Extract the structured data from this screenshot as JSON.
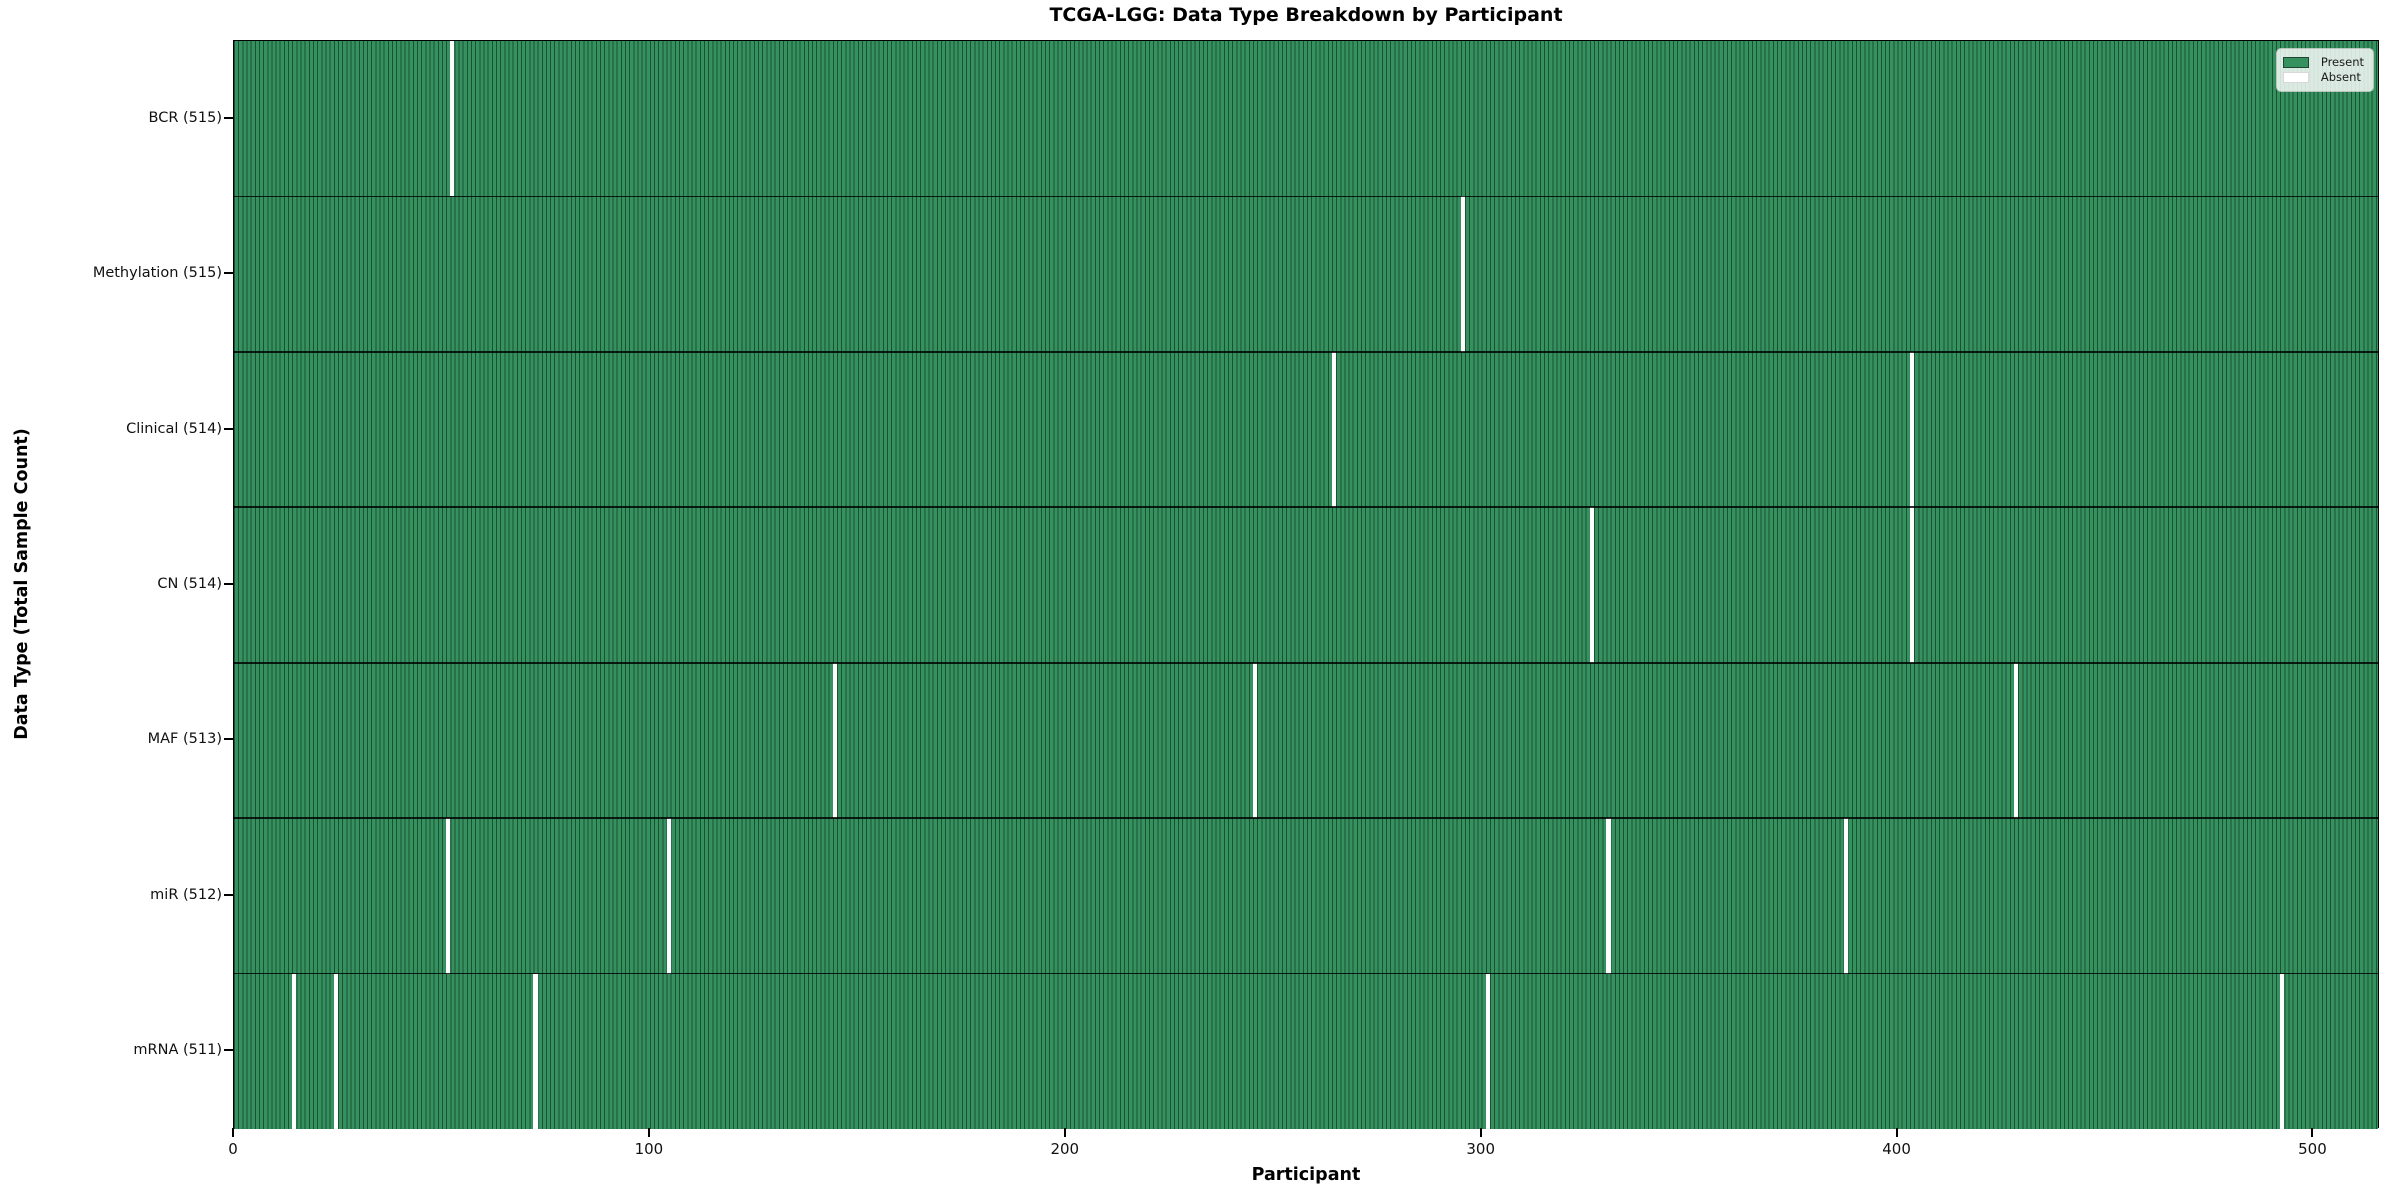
{
  "title": "TCGA-LGG: Data Type Breakdown by Participant",
  "axes": {
    "x_label": "Participant",
    "y_label": "Data Type (Total Sample Count)"
  },
  "legend": {
    "present_label": "Present",
    "absent_label": "Absent",
    "position": "upper right"
  },
  "colors": {
    "present": "#35925F",
    "cell_edge": "#1E4631",
    "absent": "#FFFFFF",
    "axis": "#000000"
  },
  "chart_data": {
    "type": "heatmap",
    "title": "TCGA-LGG: Data Type Breakdown by Participant",
    "xlabel": "Participant",
    "ylabel": "Data Type (Total Sample Count)",
    "xlim": [
      0,
      516
    ],
    "x_ticks": [
      0,
      100,
      200,
      300,
      400,
      500
    ],
    "total_participants": 516,
    "grid": false,
    "legend_entries": [
      "Present",
      "Absent"
    ],
    "legend_position": "upper right",
    "rows": [
      {
        "name": "BCR",
        "label": "BCR (515)",
        "present_count": 515,
        "absent_participants": [
          52
        ]
      },
      {
        "name": "Methylation",
        "label": "Methylation (515)",
        "present_count": 515,
        "absent_participants": [
          295
        ]
      },
      {
        "name": "Clinical",
        "label": "Clinical (514)",
        "present_count": 514,
        "absent_participants": [
          264,
          403
        ]
      },
      {
        "name": "CN",
        "label": "CN (514)",
        "present_count": 514,
        "absent_participants": [
          326,
          403
        ]
      },
      {
        "name": "MAF",
        "label": "MAF (513)",
        "present_count": 513,
        "absent_participants": [
          144,
          245,
          428
        ]
      },
      {
        "name": "miR",
        "label": "miR (512)",
        "present_count": 512,
        "absent_participants": [
          51,
          104,
          330,
          387
        ]
      },
      {
        "name": "mRNA",
        "label": "mRNA (511)",
        "present_count": 511,
        "absent_participants": [
          14,
          24,
          72,
          301,
          492
        ]
      }
    ]
  }
}
